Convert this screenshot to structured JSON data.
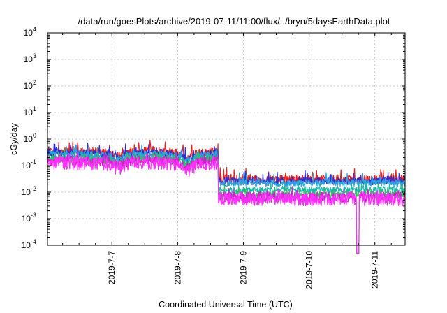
{
  "chart_data": {
    "type": "line",
    "title": "/data/run/goesPlots/archive/2019-07-11/11:00/flux/../bryn/5daysEarthData.plot",
    "xlabel": "Coordinated Universal Time (UTC)",
    "ylabel": "cGy/day",
    "yscale": "log",
    "ylim": [
      0.0001,
      10000
    ],
    "xlim": [
      "2019-07-06T00:30",
      "2019-07-11T11:00"
    ],
    "grid": true,
    "y_ticks": [
      {
        "base": "10",
        "exp": "-4",
        "value": 0.0001
      },
      {
        "base": "10",
        "exp": "-3",
        "value": 0.001
      },
      {
        "base": "10",
        "exp": "-2",
        "value": 0.01
      },
      {
        "base": "10",
        "exp": "-1",
        "value": 0.1
      },
      {
        "base": "10",
        "exp": "0",
        "value": 1
      },
      {
        "base": "10",
        "exp": "1",
        "value": 10
      },
      {
        "base": "10",
        "exp": "2",
        "value": 100
      },
      {
        "base": "10",
        "exp": "3",
        "value": 1000
      },
      {
        "base": "10",
        "exp": "4",
        "value": 10000
      }
    ],
    "x_ticks": [
      "2019-7-7",
      "2019-7-8",
      "2019-7-9",
      "2019-7-10",
      "2019-7-11"
    ],
    "x_tick_days": [
      1,
      2,
      3,
      4,
      5
    ],
    "x_start_day": 0.02,
    "x_end_day": 5.46,
    "series": [
      {
        "color": "#e8201c",
        "before_level": 0.33,
        "after_level": 0.03,
        "noise": 0.16,
        "shift": 1.2
      },
      {
        "color": "#2c2cd8",
        "before_level": 0.29,
        "after_level": 0.026,
        "noise": 0.14,
        "shift": 1.05
      },
      {
        "color": "#2aa3e0",
        "before_level": 0.26,
        "after_level": 0.022,
        "noise": 0.13,
        "shift": 0.95
      },
      {
        "color": "#19b8a8",
        "before_level": 0.19,
        "after_level": 0.012,
        "noise": 0.12,
        "shift": 0.85
      },
      {
        "color": "#30c060",
        "before_level": 0.17,
        "after_level": 0.008,
        "noise": 0.13,
        "shift": 0.75
      },
      {
        "color": "#d81ad0",
        "before_level": 0.15,
        "after_level": 0.0065,
        "noise": 0.2,
        "shift": 0.65
      },
      {
        "color": "#ff30ff",
        "before_level": 0.12,
        "after_level": 0.0055,
        "noise": 0.26,
        "shift": 0.5
      }
    ],
    "step_day": 2.62,
    "dropout_day": 4.74
  }
}
